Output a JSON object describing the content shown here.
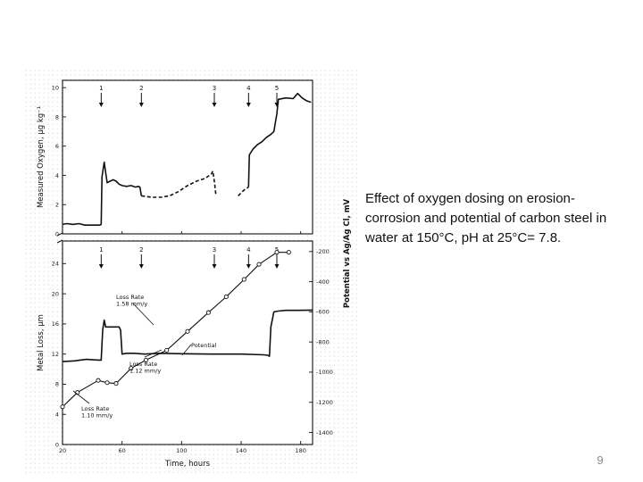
{
  "caption": "Effect of oxygen dosing on erosion-corrosion and potential of carbon steel in water at 150°C, pH at 25°C= 7.8.",
  "slide_number": "9",
  "chart_data": [
    {
      "type": "line",
      "panel": "top",
      "ylabel": "Measured Oxygen, µg kg⁻¹",
      "xlim": [
        20,
        188
      ],
      "ylim": [
        0,
        10.5
      ],
      "yticks": [
        0,
        2,
        4,
        6,
        8,
        10
      ],
      "events": [
        {
          "label": "1",
          "x": 46
        },
        {
          "label": "2",
          "x": 73
        },
        {
          "label": "3",
          "x": 122
        },
        {
          "label": "4",
          "x": 145
        },
        {
          "label": "5",
          "x": 164
        }
      ],
      "series": [
        {
          "style": "solid",
          "x": [
            20,
            23,
            27,
            31,
            35,
            39,
            43,
            45,
            46,
            46.5,
            48,
            49,
            50,
            52,
            54,
            56,
            58,
            60,
            63,
            66,
            69,
            71,
            72,
            73
          ],
          "y": [
            0.65,
            0.7,
            0.65,
            0.7,
            0.6,
            0.6,
            0.6,
            0.6,
            0.65,
            3.9,
            4.9,
            4.2,
            3.5,
            3.6,
            3.7,
            3.6,
            3.4,
            3.3,
            3.25,
            3.3,
            3.2,
            3.25,
            3.2,
            2.6
          ]
        },
        {
          "style": "dashed",
          "x": [
            73,
            80,
            86,
            92,
            98,
            104,
            110,
            116,
            120,
            121,
            122,
            123
          ],
          "y": [
            2.6,
            2.5,
            2.5,
            2.6,
            2.9,
            3.3,
            3.6,
            3.8,
            4.1,
            4.3,
            3.6,
            2.7
          ]
        },
        {
          "style": "dashed",
          "x": [
            138,
            140,
            142,
            145
          ],
          "y": [
            2.6,
            2.8,
            3.0,
            3.2
          ]
        },
        {
          "style": "solid",
          "x": [
            145,
            145.5,
            148,
            151,
            154,
            157,
            160,
            162,
            163,
            164,
            165,
            170,
            175,
            178,
            181,
            184,
            187
          ],
          "y": [
            3.2,
            5.4,
            5.8,
            6.1,
            6.3,
            6.6,
            6.8,
            7.0,
            7.6,
            8.2,
            9.2,
            9.3,
            9.25,
            9.6,
            9.3,
            9.1,
            9.0
          ]
        }
      ]
    },
    {
      "type": "line",
      "panel": "bottom",
      "xlabel": "Time, hours",
      "ylabel": "Metal Loss, µm",
      "y2label": "Potential vs Ag/Ag Cl, mV",
      "xlim": [
        20,
        188
      ],
      "xticks": [
        20,
        60,
        100,
        140,
        180
      ],
      "ylim": [
        0,
        27
      ],
      "yticks": [
        0,
        4,
        8,
        12,
        16,
        20,
        24
      ],
      "y2lim": [
        -1480,
        -130
      ],
      "y2ticks": [
        -200,
        -400,
        -600,
        -800,
        -1000,
        -1200,
        -1400
      ],
      "events": [
        {
          "label": "1",
          "x": 46
        },
        {
          "label": "2",
          "x": 73
        },
        {
          "label": "3",
          "x": 122
        },
        {
          "label": "4",
          "x": 145
        },
        {
          "label": "5",
          "x": 164
        }
      ],
      "series": [
        {
          "name": "Metal Loss",
          "marker": "circle",
          "x": [
            20,
            30,
            44,
            50,
            56,
            66,
            76,
            90,
            104,
            118,
            130,
            142,
            152,
            164,
            172
          ],
          "y": [
            5.0,
            6.9,
            8.5,
            8.2,
            8.1,
            10.1,
            11.2,
            12.5,
            15.0,
            17.5,
            19.6,
            21.9,
            23.9,
            25.5,
            25.5
          ]
        },
        {
          "name": "Potential",
          "marker": "none",
          "x": [
            20,
            28,
            36,
            44,
            46,
            47,
            48,
            49,
            50,
            52,
            56,
            58,
            59,
            60,
            63,
            68,
            75,
            85,
            100,
            120,
            140,
            155,
            158,
            159,
            160,
            162,
            165,
            170,
            178,
            188
          ],
          "y": [
            -930,
            -925,
            -915,
            -920,
            -920,
            -720,
            -655,
            -700,
            -700,
            -700,
            -700,
            -700,
            -720,
            -880,
            -875,
            -875,
            -880,
            -875,
            -878,
            -880,
            -880,
            -885,
            -888,
            -895,
            -700,
            -600,
            -595,
            -590,
            -590,
            -588
          ]
        }
      ],
      "annotations": [
        {
          "text": "Loss Rate",
          "text2": "1.58 mm/y"
        },
        {
          "text": "Loss Rate",
          "text2": "1.12 mm/y"
        },
        {
          "text": "Loss Rate",
          "text2": "1.10 mm/y"
        },
        {
          "text": "Potential"
        }
      ]
    }
  ]
}
